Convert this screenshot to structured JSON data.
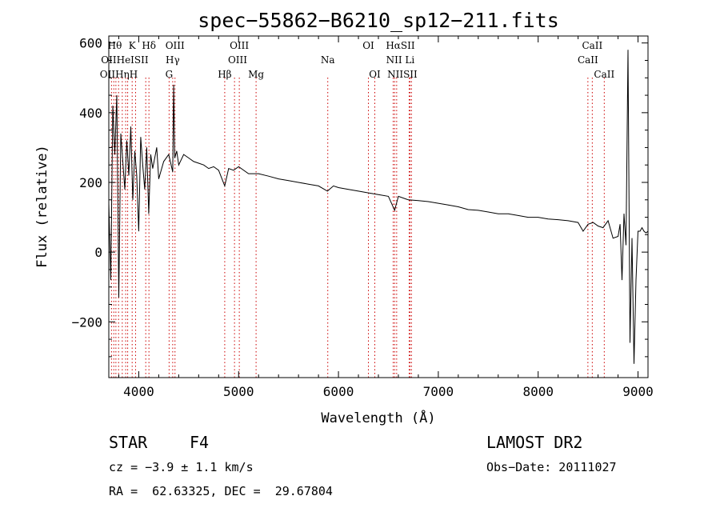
{
  "chart_data": {
    "type": "line",
    "title": "spec−55862−B6210_sp12−211.fits",
    "xlabel": "Wavelength (Å)",
    "ylabel": "Flux (relative)",
    "xlim": [
      3700,
      9100
    ],
    "ylim": [
      -360,
      620
    ],
    "x_ticks": [
      4000,
      5000,
      6000,
      7000,
      8000,
      9000
    ],
    "y_ticks": [
      -200,
      0,
      200,
      400,
      600
    ],
    "grid": false,
    "series": [
      {
        "x": [
          3700,
          3720,
          3740,
          3760,
          3780,
          3800,
          3820,
          3840,
          3860,
          3880,
          3900,
          3920,
          3940,
          3960,
          3980,
          4000,
          4020,
          4040,
          4060,
          4080,
          4100,
          4120,
          4140,
          4160,
          4180,
          4200,
          4250,
          4300,
          4340,
          4350,
          4360,
          4380,
          4400,
          4450,
          4500,
          4550,
          4600,
          4650,
          4700,
          4750,
          4800,
          4861,
          4900,
          4950,
          5000,
          5100,
          5200,
          5300,
          5400,
          5500,
          5600,
          5700,
          5800,
          5890,
          5950,
          6000,
          6100,
          6200,
          6300,
          6400,
          6500,
          6563,
          6600,
          6700,
          6800,
          6900,
          7000,
          7100,
          7200,
          7300,
          7400,
          7500,
          7600,
          7700,
          7800,
          7900,
          8000,
          8100,
          8200,
          8300,
          8400,
          8450,
          8500,
          8550,
          8600,
          8650,
          8700,
          8750,
          8800,
          8820,
          8840,
          8860,
          8880,
          8900,
          8920,
          8940,
          8960,
          8980,
          9000,
          9020,
          9040,
          9060,
          9080,
          9100
        ],
        "y": [
          140,
          -80,
          420,
          280,
          450,
          -130,
          340,
          260,
          180,
          320,
          220,
          360,
          150,
          290,
          220,
          60,
          330,
          250,
          180,
          300,
          110,
          280,
          240,
          270,
          300,
          210,
          260,
          280,
          230,
          480,
          270,
          290,
          250,
          280,
          270,
          260,
          255,
          250,
          240,
          245,
          235,
          190,
          240,
          235,
          245,
          225,
          225,
          218,
          210,
          205,
          200,
          195,
          190,
          175,
          190,
          185,
          180,
          175,
          170,
          165,
          160,
          120,
          160,
          150,
          148,
          145,
          140,
          135,
          130,
          122,
          120,
          115,
          110,
          110,
          105,
          100,
          100,
          95,
          93,
          90,
          85,
          60,
          80,
          85,
          75,
          70,
          90,
          40,
          45,
          80,
          -80,
          110,
          20,
          580,
          -260,
          40,
          -320,
          -80,
          60,
          60,
          70,
          60,
          55,
          60
        ]
      }
    ],
    "lines": [
      {
        "wave": 3727,
        "label": "OII"
      },
      {
        "wave": 3750,
        "label": "Hθ"
      },
      {
        "wave": 3771,
        "label": "Hη"
      },
      {
        "wave": 3798,
        "label": "OIII"
      },
      {
        "wave": 3835,
        "label": "Hη"
      },
      {
        "wave": 3869,
        "label": "HeI"
      },
      {
        "wave": 3889,
        "label": "HeI"
      },
      {
        "wave": 3934,
        "label": "K"
      },
      {
        "wave": 3968,
        "label": "H"
      },
      {
        "wave": 4070,
        "label": "SII"
      },
      {
        "wave": 4102,
        "label": "Hδ"
      },
      {
        "wave": 4304,
        "label": "G"
      },
      {
        "wave": 4340,
        "label": "Hγ"
      },
      {
        "wave": 4363,
        "label": "OIII"
      },
      {
        "wave": 4861,
        "label": "Hβ"
      },
      {
        "wave": 4959,
        "label": "OIII"
      },
      {
        "wave": 5007,
        "label": "OIII"
      },
      {
        "wave": 5175,
        "label": "Mg"
      },
      {
        "wave": 5893,
        "label": "Na"
      },
      {
        "wave": 6300,
        "label": "OI"
      },
      {
        "wave": 6364,
        "label": "OI"
      },
      {
        "wave": 6548,
        "label": "NII"
      },
      {
        "wave": 6563,
        "label": "Hα"
      },
      {
        "wave": 6583,
        "label": "NII"
      },
      {
        "wave": 6708,
        "label": "Li"
      },
      {
        "wave": 6717,
        "label": "SII"
      },
      {
        "wave": 6731,
        "label": "SII"
      },
      {
        "wave": 8498,
        "label": "CaII"
      },
      {
        "wave": 8542,
        "label": "CaII"
      },
      {
        "wave": 8662,
        "label": "CaII"
      }
    ],
    "line_labels": [
      {
        "text": "Hθ",
        "wave": 3760,
        "row": 0
      },
      {
        "text": "K",
        "wave": 3934,
        "row": 0
      },
      {
        "text": "Hδ",
        "wave": 4102,
        "row": 0
      },
      {
        "text": "OIII",
        "wave": 4363,
        "row": 0
      },
      {
        "text": "OIII",
        "wave": 5007,
        "row": 0
      },
      {
        "text": "OI",
        "wave": 6300,
        "row": 0
      },
      {
        "text": "HαSII",
        "wave": 6620,
        "row": 0
      },
      {
        "text": "CaII",
        "wave": 8542,
        "row": 0
      },
      {
        "text": "OIIHeISII",
        "wave": 3860,
        "row": 1
      },
      {
        "text": "Hγ",
        "wave": 4340,
        "row": 1
      },
      {
        "text": "OIII",
        "wave": 4990,
        "row": 1
      },
      {
        "text": "Na",
        "wave": 5893,
        "row": 1
      },
      {
        "text": "NII Li",
        "wave": 6620,
        "row": 1
      },
      {
        "text": "CaII",
        "wave": 8498,
        "row": 1
      },
      {
        "text": "OIIHηH",
        "wave": 3800,
        "row": 2
      },
      {
        "text": "G",
        "wave": 4304,
        "row": 2
      },
      {
        "text": "Hβ",
        "wave": 4861,
        "row": 2
      },
      {
        "text": "Mg",
        "wave": 5175,
        "row": 2
      },
      {
        "text": "OI",
        "wave": 6364,
        "row": 2
      },
      {
        "text": "NIISII",
        "wave": 6640,
        "row": 2
      },
      {
        "text": "CaII",
        "wave": 8662,
        "row": 2
      }
    ],
    "colors": {
      "spectrum": "#000000",
      "line_markers": "#cc0000",
      "frame": "#000000"
    }
  },
  "info": {
    "object_class": "STAR",
    "subclass": "F4",
    "survey": "LAMOST DR2",
    "redshift": "cz = −3.9 ± 1.1 km/s",
    "obs_date": "Obs−Date: 20111027",
    "coords": "RA =  62.63325, DEC =  29.67804"
  }
}
